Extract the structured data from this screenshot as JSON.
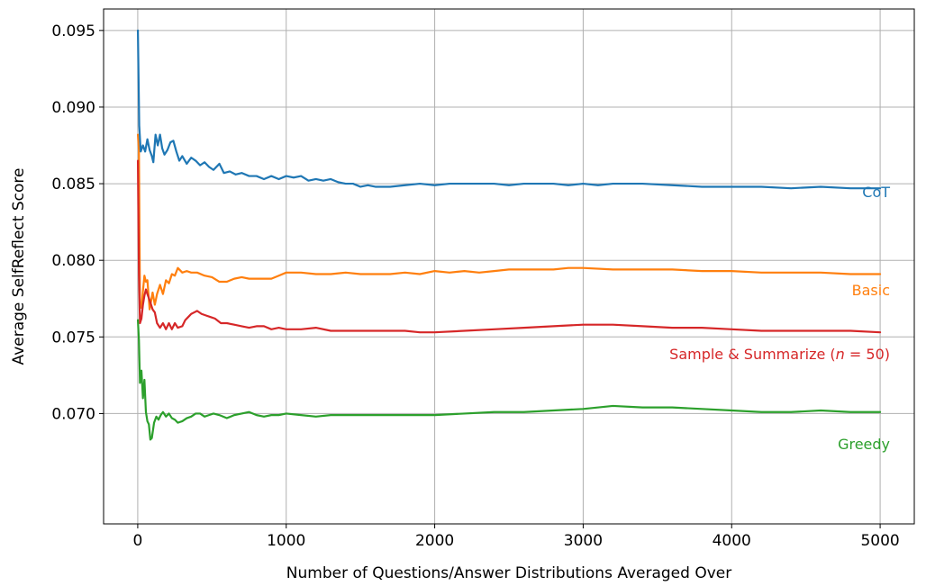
{
  "chart_data": {
    "type": "line",
    "title": "",
    "xlabel": "Number of Questions/Answer Distributions Averaged Over",
    "ylabel": "Average SelfReflect Score",
    "xlim": [
      -230,
      5230
    ],
    "ylim": [
      0.0628,
      0.0964
    ],
    "grid": true,
    "legend": "none; series labels placed inline at right end of each line",
    "x_ticks": [
      0,
      1000,
      2000,
      3000,
      4000,
      5000
    ],
    "x_tick_labels": [
      "0",
      "1000",
      "2000",
      "3000",
      "4000",
      "5000"
    ],
    "y_ticks": [
      0.07,
      0.075,
      0.08,
      0.085,
      0.09,
      0.095
    ],
    "y_tick_labels": [
      "0.070",
      "0.075",
      "0.080",
      "0.085",
      "0.090",
      "0.095"
    ],
    "series": [
      {
        "name": "CoT",
        "color": "#1f77b4",
        "points": [
          [
            1,
            0.095
          ],
          [
            10,
            0.0888
          ],
          [
            20,
            0.0871
          ],
          [
            35,
            0.0875
          ],
          [
            50,
            0.0871
          ],
          [
            65,
            0.0879
          ],
          [
            80,
            0.0872
          ],
          [
            95,
            0.0868
          ],
          [
            105,
            0.0864
          ],
          [
            120,
            0.0882
          ],
          [
            135,
            0.0875
          ],
          [
            150,
            0.0882
          ],
          [
            165,
            0.0873
          ],
          [
            180,
            0.0869
          ],
          [
            200,
            0.0872
          ],
          [
            220,
            0.0877
          ],
          [
            240,
            0.0878
          ],
          [
            260,
            0.0871
          ],
          [
            280,
            0.0865
          ],
          [
            300,
            0.0868
          ],
          [
            330,
            0.0863
          ],
          [
            360,
            0.0867
          ],
          [
            390,
            0.0865
          ],
          [
            420,
            0.0862
          ],
          [
            450,
            0.0864
          ],
          [
            480,
            0.0861
          ],
          [
            510,
            0.0859
          ],
          [
            550,
            0.0863
          ],
          [
            580,
            0.0857
          ],
          [
            620,
            0.0858
          ],
          [
            660,
            0.0856
          ],
          [
            700,
            0.0857
          ],
          [
            750,
            0.0855
          ],
          [
            800,
            0.0855
          ],
          [
            850,
            0.0853
          ],
          [
            900,
            0.0855
          ],
          [
            950,
            0.0853
          ],
          [
            1000,
            0.0855
          ],
          [
            1050,
            0.0854
          ],
          [
            1100,
            0.0855
          ],
          [
            1150,
            0.0852
          ],
          [
            1200,
            0.0853
          ],
          [
            1250,
            0.0852
          ],
          [
            1300,
            0.0853
          ],
          [
            1350,
            0.0851
          ],
          [
            1400,
            0.085
          ],
          [
            1450,
            0.085
          ],
          [
            1500,
            0.0848
          ],
          [
            1550,
            0.0849
          ],
          [
            1600,
            0.0848
          ],
          [
            1700,
            0.0848
          ],
          [
            1800,
            0.0849
          ],
          [
            1900,
            0.085
          ],
          [
            2000,
            0.0849
          ],
          [
            2100,
            0.085
          ],
          [
            2200,
            0.085
          ],
          [
            2400,
            0.085
          ],
          [
            2500,
            0.0849
          ],
          [
            2600,
            0.085
          ],
          [
            2700,
            0.085
          ],
          [
            2800,
            0.085
          ],
          [
            2900,
            0.0849
          ],
          [
            3000,
            0.085
          ],
          [
            3100,
            0.0849
          ],
          [
            3200,
            0.085
          ],
          [
            3300,
            0.085
          ],
          [
            3400,
            0.085
          ],
          [
            3600,
            0.0849
          ],
          [
            3800,
            0.0848
          ],
          [
            4000,
            0.0848
          ],
          [
            4200,
            0.0848
          ],
          [
            4400,
            0.0847
          ],
          [
            4600,
            0.0848
          ],
          [
            4800,
            0.0847
          ],
          [
            5000,
            0.0847
          ]
        ]
      },
      {
        "name": "Basic",
        "color": "#ff7f0e",
        "points": [
          [
            1,
            0.0882
          ],
          [
            8,
            0.0872
          ],
          [
            15,
            0.0773
          ],
          [
            25,
            0.0769
          ],
          [
            35,
            0.078
          ],
          [
            45,
            0.079
          ],
          [
            55,
            0.0786
          ],
          [
            65,
            0.0787
          ],
          [
            80,
            0.0768
          ],
          [
            100,
            0.0779
          ],
          [
            115,
            0.0771
          ],
          [
            130,
            0.0778
          ],
          [
            150,
            0.0784
          ],
          [
            170,
            0.0778
          ],
          [
            190,
            0.0787
          ],
          [
            210,
            0.0785
          ],
          [
            230,
            0.0791
          ],
          [
            250,
            0.079
          ],
          [
            270,
            0.0795
          ],
          [
            300,
            0.0792
          ],
          [
            330,
            0.0793
          ],
          [
            360,
            0.0792
          ],
          [
            400,
            0.0792
          ],
          [
            450,
            0.079
          ],
          [
            500,
            0.0789
          ],
          [
            550,
            0.0786
          ],
          [
            600,
            0.0786
          ],
          [
            650,
            0.0788
          ],
          [
            700,
            0.0789
          ],
          [
            750,
            0.0788
          ],
          [
            800,
            0.0788
          ],
          [
            850,
            0.0788
          ],
          [
            900,
            0.0788
          ],
          [
            950,
            0.079
          ],
          [
            1000,
            0.0792
          ],
          [
            1100,
            0.0792
          ],
          [
            1200,
            0.0791
          ],
          [
            1300,
            0.0791
          ],
          [
            1400,
            0.0792
          ],
          [
            1500,
            0.0791
          ],
          [
            1600,
            0.0791
          ],
          [
            1700,
            0.0791
          ],
          [
            1800,
            0.0792
          ],
          [
            1900,
            0.0791
          ],
          [
            2000,
            0.0793
          ],
          [
            2100,
            0.0792
          ],
          [
            2200,
            0.0793
          ],
          [
            2300,
            0.0792
          ],
          [
            2400,
            0.0793
          ],
          [
            2500,
            0.0794
          ],
          [
            2600,
            0.0794
          ],
          [
            2700,
            0.0794
          ],
          [
            2800,
            0.0794
          ],
          [
            2900,
            0.0795
          ],
          [
            3000,
            0.0795
          ],
          [
            3200,
            0.0794
          ],
          [
            3400,
            0.0794
          ],
          [
            3600,
            0.0794
          ],
          [
            3800,
            0.0793
          ],
          [
            4000,
            0.0793
          ],
          [
            4200,
            0.0792
          ],
          [
            4400,
            0.0792
          ],
          [
            4600,
            0.0792
          ],
          [
            4800,
            0.0791
          ],
          [
            5000,
            0.0791
          ]
        ]
      },
      {
        "name": "Sample & Summarize (n = 50)",
        "color": "#d62728",
        "points": [
          [
            1,
            0.0865
          ],
          [
            8,
            0.0791
          ],
          [
            15,
            0.0759
          ],
          [
            25,
            0.0762
          ],
          [
            35,
            0.0771
          ],
          [
            45,
            0.0777
          ],
          [
            55,
            0.0781
          ],
          [
            65,
            0.0778
          ],
          [
            80,
            0.0774
          ],
          [
            100,
            0.0768
          ],
          [
            115,
            0.0766
          ],
          [
            130,
            0.0759
          ],
          [
            150,
            0.0756
          ],
          [
            170,
            0.0759
          ],
          [
            190,
            0.0755
          ],
          [
            210,
            0.0759
          ],
          [
            230,
            0.0755
          ],
          [
            250,
            0.0759
          ],
          [
            270,
            0.0756
          ],
          [
            300,
            0.0757
          ],
          [
            320,
            0.0761
          ],
          [
            340,
            0.0763
          ],
          [
            360,
            0.0765
          ],
          [
            380,
            0.0766
          ],
          [
            400,
            0.0767
          ],
          [
            430,
            0.0765
          ],
          [
            460,
            0.0764
          ],
          [
            490,
            0.0763
          ],
          [
            520,
            0.0762
          ],
          [
            560,
            0.0759
          ],
          [
            600,
            0.0759
          ],
          [
            650,
            0.0758
          ],
          [
            700,
            0.0757
          ],
          [
            750,
            0.0756
          ],
          [
            800,
            0.0757
          ],
          [
            850,
            0.0757
          ],
          [
            900,
            0.0755
          ],
          [
            950,
            0.0756
          ],
          [
            1000,
            0.0755
          ],
          [
            1100,
            0.0755
          ],
          [
            1200,
            0.0756
          ],
          [
            1300,
            0.0754
          ],
          [
            1400,
            0.0754
          ],
          [
            1500,
            0.0754
          ],
          [
            1600,
            0.0754
          ],
          [
            1700,
            0.0754
          ],
          [
            1800,
            0.0754
          ],
          [
            1900,
            0.0753
          ],
          [
            2000,
            0.0753
          ],
          [
            2200,
            0.0754
          ],
          [
            2400,
            0.0755
          ],
          [
            2600,
            0.0756
          ],
          [
            2800,
            0.0757
          ],
          [
            3000,
            0.0758
          ],
          [
            3200,
            0.0758
          ],
          [
            3400,
            0.0757
          ],
          [
            3600,
            0.0756
          ],
          [
            3800,
            0.0756
          ],
          [
            4000,
            0.0755
          ],
          [
            4200,
            0.0754
          ],
          [
            4400,
            0.0754
          ],
          [
            4600,
            0.0754
          ],
          [
            4800,
            0.0754
          ],
          [
            5000,
            0.0753
          ]
        ]
      },
      {
        "name": "Greedy",
        "color": "#2ca02c",
        "points": [
          [
            1,
            0.0761
          ],
          [
            8,
            0.0748
          ],
          [
            15,
            0.072
          ],
          [
            25,
            0.0728
          ],
          [
            35,
            0.071
          ],
          [
            45,
            0.0722
          ],
          [
            55,
            0.0701
          ],
          [
            65,
            0.0695
          ],
          [
            75,
            0.0693
          ],
          [
            85,
            0.0683
          ],
          [
            95,
            0.0684
          ],
          [
            110,
            0.0694
          ],
          [
            125,
            0.0698
          ],
          [
            140,
            0.0696
          ],
          [
            155,
            0.0699
          ],
          [
            170,
            0.0701
          ],
          [
            190,
            0.0698
          ],
          [
            210,
            0.07
          ],
          [
            230,
            0.0697
          ],
          [
            250,
            0.0696
          ],
          [
            270,
            0.0694
          ],
          [
            300,
            0.0695
          ],
          [
            330,
            0.0697
          ],
          [
            360,
            0.0698
          ],
          [
            390,
            0.07
          ],
          [
            420,
            0.07
          ],
          [
            450,
            0.0698
          ],
          [
            480,
            0.0699
          ],
          [
            510,
            0.07
          ],
          [
            550,
            0.0699
          ],
          [
            600,
            0.0697
          ],
          [
            650,
            0.0699
          ],
          [
            700,
            0.07
          ],
          [
            750,
            0.0701
          ],
          [
            800,
            0.0699
          ],
          [
            850,
            0.0698
          ],
          [
            900,
            0.0699
          ],
          [
            950,
            0.0699
          ],
          [
            1000,
            0.07
          ],
          [
            1100,
            0.0699
          ],
          [
            1200,
            0.0698
          ],
          [
            1300,
            0.0699
          ],
          [
            1400,
            0.0699
          ],
          [
            1500,
            0.0699
          ],
          [
            1600,
            0.0699
          ],
          [
            1700,
            0.0699
          ],
          [
            1800,
            0.0699
          ],
          [
            1900,
            0.0699
          ],
          [
            2000,
            0.0699
          ],
          [
            2200,
            0.07
          ],
          [
            2400,
            0.0701
          ],
          [
            2600,
            0.0701
          ],
          [
            2800,
            0.0702
          ],
          [
            3000,
            0.0703
          ],
          [
            3200,
            0.0705
          ],
          [
            3400,
            0.0704
          ],
          [
            3600,
            0.0704
          ],
          [
            3800,
            0.0703
          ],
          [
            4000,
            0.0702
          ],
          [
            4200,
            0.0701
          ],
          [
            4400,
            0.0701
          ],
          [
            4600,
            0.0702
          ],
          [
            4800,
            0.0701
          ],
          [
            5000,
            0.0701
          ]
        ]
      }
    ],
    "series_labels": [
      {
        "text": "CoT",
        "color": "#1f77b4"
      },
      {
        "text": "Basic",
        "color": "#ff7f0e"
      },
      {
        "text_prefix": "Sample & Summarize (",
        "text_var": "n",
        "text_eq": " = 50)",
        "color": "#d62728"
      },
      {
        "text": "Greedy",
        "color": "#2ca02c"
      }
    ]
  }
}
